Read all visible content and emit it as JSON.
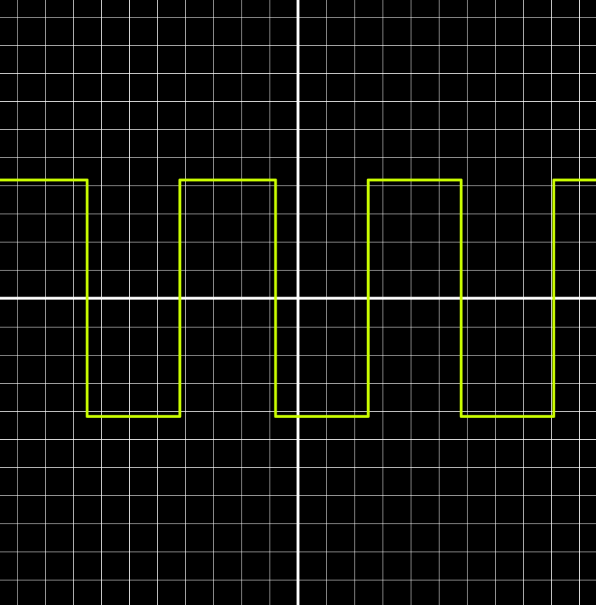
{
  "chart_data": {
    "type": "line",
    "title": "",
    "xlabel": "",
    "ylabel": "",
    "xlim": [
      -10.6,
      10.6
    ],
    "ylim": [
      -10.6,
      10.6
    ],
    "grid": true,
    "grid_step": 1,
    "show_axes": true,
    "series": [
      {
        "color": "#ccff00",
        "x": [
          -10.6,
          -7.5,
          -7.5,
          -4.2,
          -4.2,
          -0.8,
          -0.8,
          2.5,
          2.5,
          5.8,
          5.8,
          9.1,
          9.1,
          10.6
        ],
        "y": [
          4.2,
          4.2,
          -4.2,
          -4.2,
          4.2,
          4.2,
          -4.2,
          -4.2,
          4.2,
          4.2,
          -4.2,
          -4.2,
          4.2,
          4.2
        ]
      }
    ]
  },
  "colors": {
    "background": "#000000",
    "grid": "#ffffff",
    "axes": "#ffffff",
    "trace": "#ccff00"
  }
}
